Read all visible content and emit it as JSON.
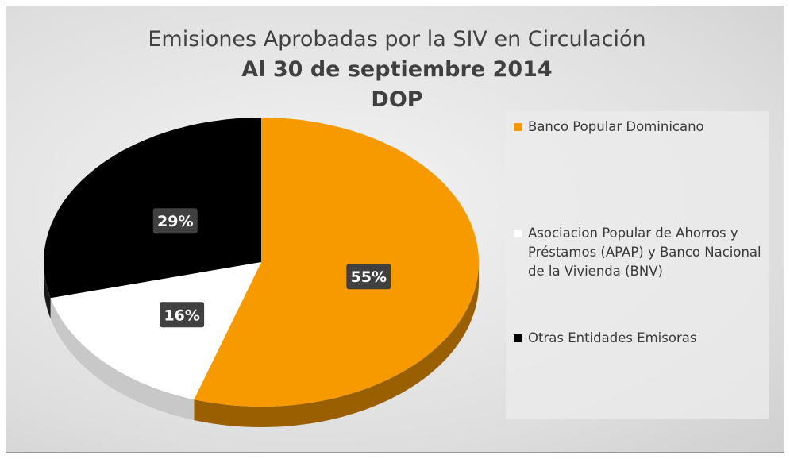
{
  "chart_data": {
    "type": "pie3d",
    "title": [
      "Emisiones Aprobadas por la SIV en Circulación",
      "Al 30 de septiembre 2014",
      "DOP"
    ],
    "categories": [
      "Banco Popular Dominicano",
      "Asociacion Popular de Ahorros y Préstamos (APAP) y Banco Nacional de la Vivienda (BNV)",
      "Otras Entidades Emisoras"
    ],
    "values": [
      55,
      16,
      29
    ],
    "value_labels": [
      "55%",
      "16%",
      "29%"
    ],
    "colors": [
      "#f79a00",
      "#ffffff",
      "#000000"
    ],
    "legend": "right"
  }
}
